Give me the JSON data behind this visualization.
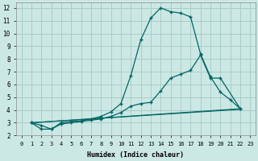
{
  "xlabel": "Humidex (Indice chaleur)",
  "bg_color": "#cce8e4",
  "grid_color": "#aaccc8",
  "line_color": "#006666",
  "xlim": [
    -0.5,
    23.5
  ],
  "ylim": [
    2,
    12.4
  ],
  "xticks": [
    0,
    1,
    2,
    3,
    4,
    5,
    6,
    7,
    8,
    9,
    10,
    11,
    12,
    13,
    14,
    15,
    16,
    17,
    18,
    19,
    20,
    21,
    22,
    23
  ],
  "yticks": [
    2,
    3,
    4,
    5,
    6,
    7,
    8,
    9,
    10,
    11,
    12
  ],
  "line1_x": [
    1,
    2,
    3,
    4,
    5,
    6,
    7,
    8,
    9,
    10,
    11,
    12,
    13,
    14,
    15,
    16,
    17,
    18,
    19,
    20,
    21,
    22
  ],
  "line1_y": [
    3.0,
    2.8,
    2.5,
    3.0,
    3.1,
    3.15,
    3.3,
    3.5,
    3.85,
    4.5,
    6.7,
    9.5,
    11.2,
    12.0,
    11.7,
    11.6,
    11.3,
    8.4,
    6.6,
    5.4,
    4.8,
    4.1
  ],
  "line2_x": [
    1,
    2,
    3,
    4,
    5,
    6,
    7,
    8,
    9,
    10,
    11,
    12,
    13,
    14,
    15,
    16,
    17,
    18,
    19,
    20,
    22
  ],
  "line2_y": [
    3.0,
    2.5,
    2.5,
    2.9,
    3.0,
    3.1,
    3.2,
    3.3,
    3.5,
    3.8,
    4.3,
    4.5,
    4.6,
    5.5,
    6.5,
    6.8,
    7.1,
    8.3,
    6.5,
    6.5,
    4.1
  ],
  "line3_x": [
    1,
    22
  ],
  "line3_y": [
    3.0,
    4.1
  ],
  "line4_x": [
    1,
    22
  ],
  "line4_y": [
    3.0,
    4.05
  ]
}
